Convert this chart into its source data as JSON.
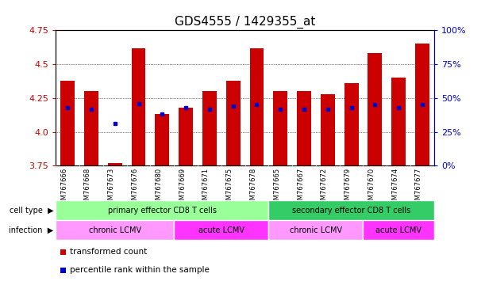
{
  "title": "GDS4555 / 1429355_at",
  "samples": [
    "GSM767666",
    "GSM767668",
    "GSM767673",
    "GSM767676",
    "GSM767680",
    "GSM767669",
    "GSM767671",
    "GSM767675",
    "GSM767678",
    "GSM767665",
    "GSM767667",
    "GSM767672",
    "GSM767679",
    "GSM767670",
    "GSM767674",
    "GSM767677"
  ],
  "bar_values": [
    4.38,
    4.3,
    3.77,
    4.62,
    4.13,
    4.18,
    4.3,
    4.38,
    4.62,
    4.3,
    4.3,
    4.28,
    4.36,
    4.58,
    4.4,
    4.65
  ],
  "blue_values": [
    4.18,
    4.17,
    4.06,
    4.21,
    4.13,
    4.18,
    4.17,
    4.19,
    4.2,
    4.17,
    4.17,
    4.17,
    4.18,
    4.2,
    4.18,
    4.2
  ],
  "ymin": 3.75,
  "ymax": 4.75,
  "yticks_left": [
    3.75,
    4.0,
    4.25,
    4.5,
    4.75
  ],
  "yticks_right": [
    0,
    25,
    50,
    75,
    100
  ],
  "ytick_right_labels": [
    "0%",
    "25%",
    "50%",
    "75%",
    "100%"
  ],
  "bar_color": "#cc0000",
  "blue_color": "#0000cc",
  "bar_width": 0.6,
  "cell_type_groups": [
    {
      "label": "primary effector CD8 T cells",
      "start": 0,
      "end": 9,
      "color": "#99ff99"
    },
    {
      "label": "secondary effector CD8 T cells",
      "start": 9,
      "end": 16,
      "color": "#33cc66"
    }
  ],
  "infection_groups": [
    {
      "label": "chronic LCMV",
      "start": 0,
      "end": 5,
      "color": "#ff99ff"
    },
    {
      "label": "acute LCMV",
      "start": 5,
      "end": 9,
      "color": "#ff33ff"
    },
    {
      "label": "chronic LCMV",
      "start": 9,
      "end": 13,
      "color": "#ff99ff"
    },
    {
      "label": "acute LCMV",
      "start": 13,
      "end": 16,
      "color": "#ff33ff"
    }
  ],
  "legend_items": [
    {
      "color": "#cc0000",
      "label": "transformed count"
    },
    {
      "color": "#0000cc",
      "label": "percentile rank within the sample"
    }
  ],
  "bg_color": "white",
  "left_axis_color": "#cc0000",
  "right_axis_color": "#0000cc",
  "title_fontsize": 11,
  "tick_fontsize": 8
}
